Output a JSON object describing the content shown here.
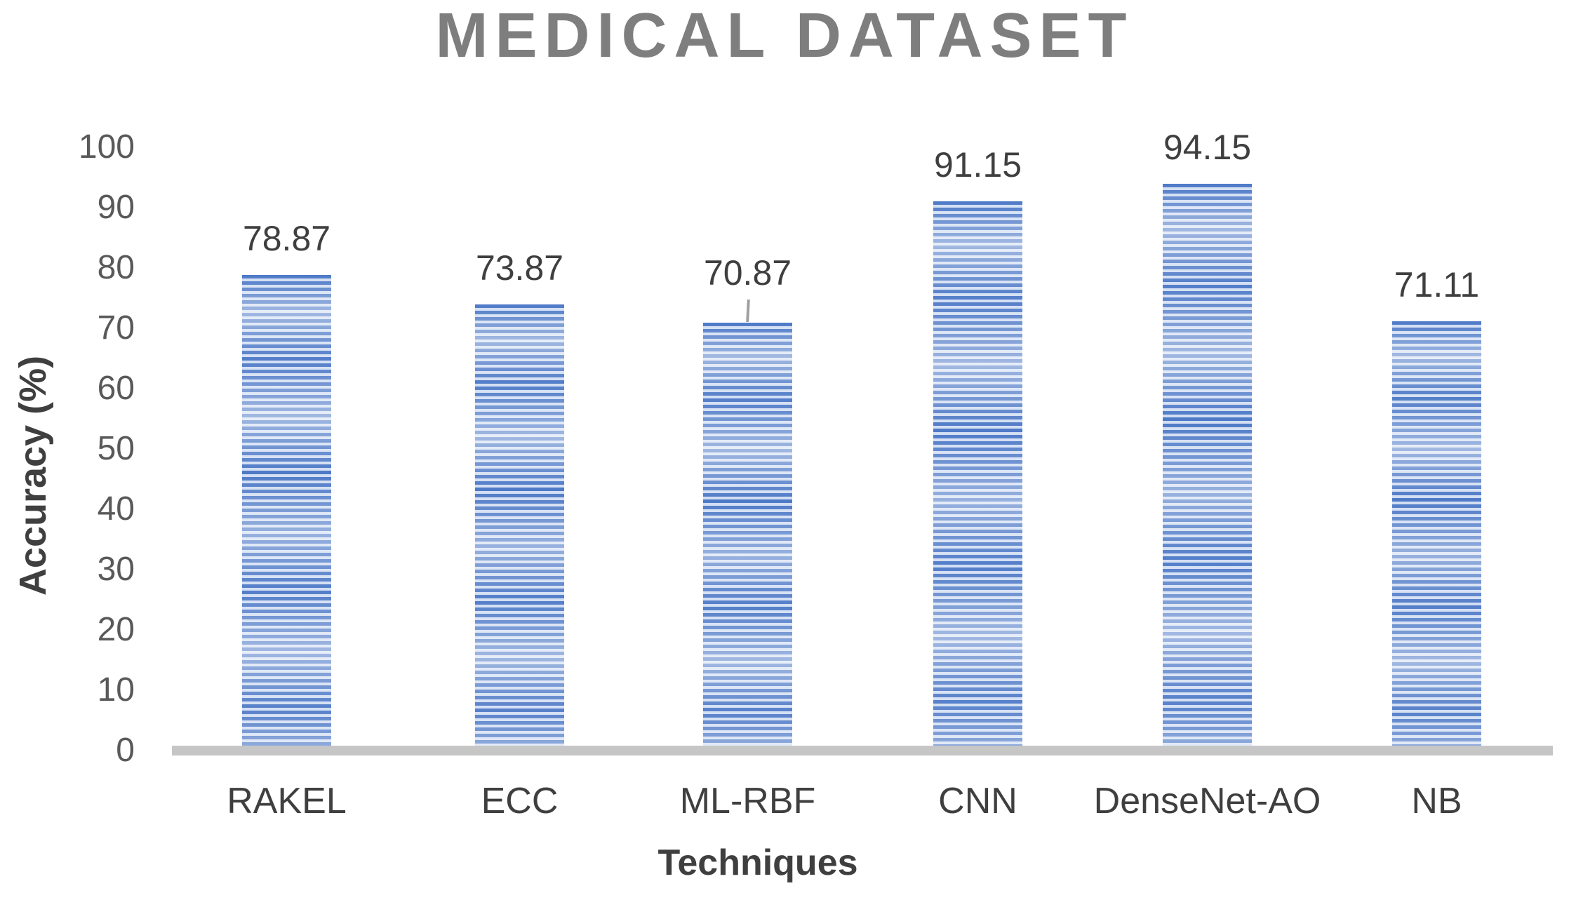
{
  "chart_data": {
    "type": "bar",
    "title": "MEDICAL DATASET",
    "xlabel": "Techniques",
    "ylabel": "Accuracy (%)",
    "categories": [
      "RAKEL",
      "ECC",
      "ML-RBF",
      "CNN",
      "DenseNet-AO",
      "NB"
    ],
    "values": [
      78.87,
      73.87,
      70.87,
      91.15,
      94.15,
      71.11
    ],
    "data_labels": [
      "78.87",
      "73.87",
      "70.87",
      "91.15",
      "94.15",
      "71.11"
    ],
    "ylim": [
      0,
      100
    ],
    "ytick_step": 10,
    "yticks": [
      "100",
      "90",
      "80",
      "70",
      "60",
      "50",
      "40",
      "30",
      "20",
      "10",
      "0"
    ],
    "grid": false,
    "legend_position": "none",
    "annotations": {
      "leader_line_category": "ML-RBF"
    },
    "colors": {
      "bar_primary": "#4472C4",
      "bar_stripe_light": "#CFDCF2",
      "axis_line": "#C6C6C6",
      "title_text": "#7E7E7E",
      "axis_text": "#3F3F3F",
      "tick_text": "#595959",
      "leader_line": "#A0A0A0",
      "background": "#FFFFFF"
    }
  }
}
